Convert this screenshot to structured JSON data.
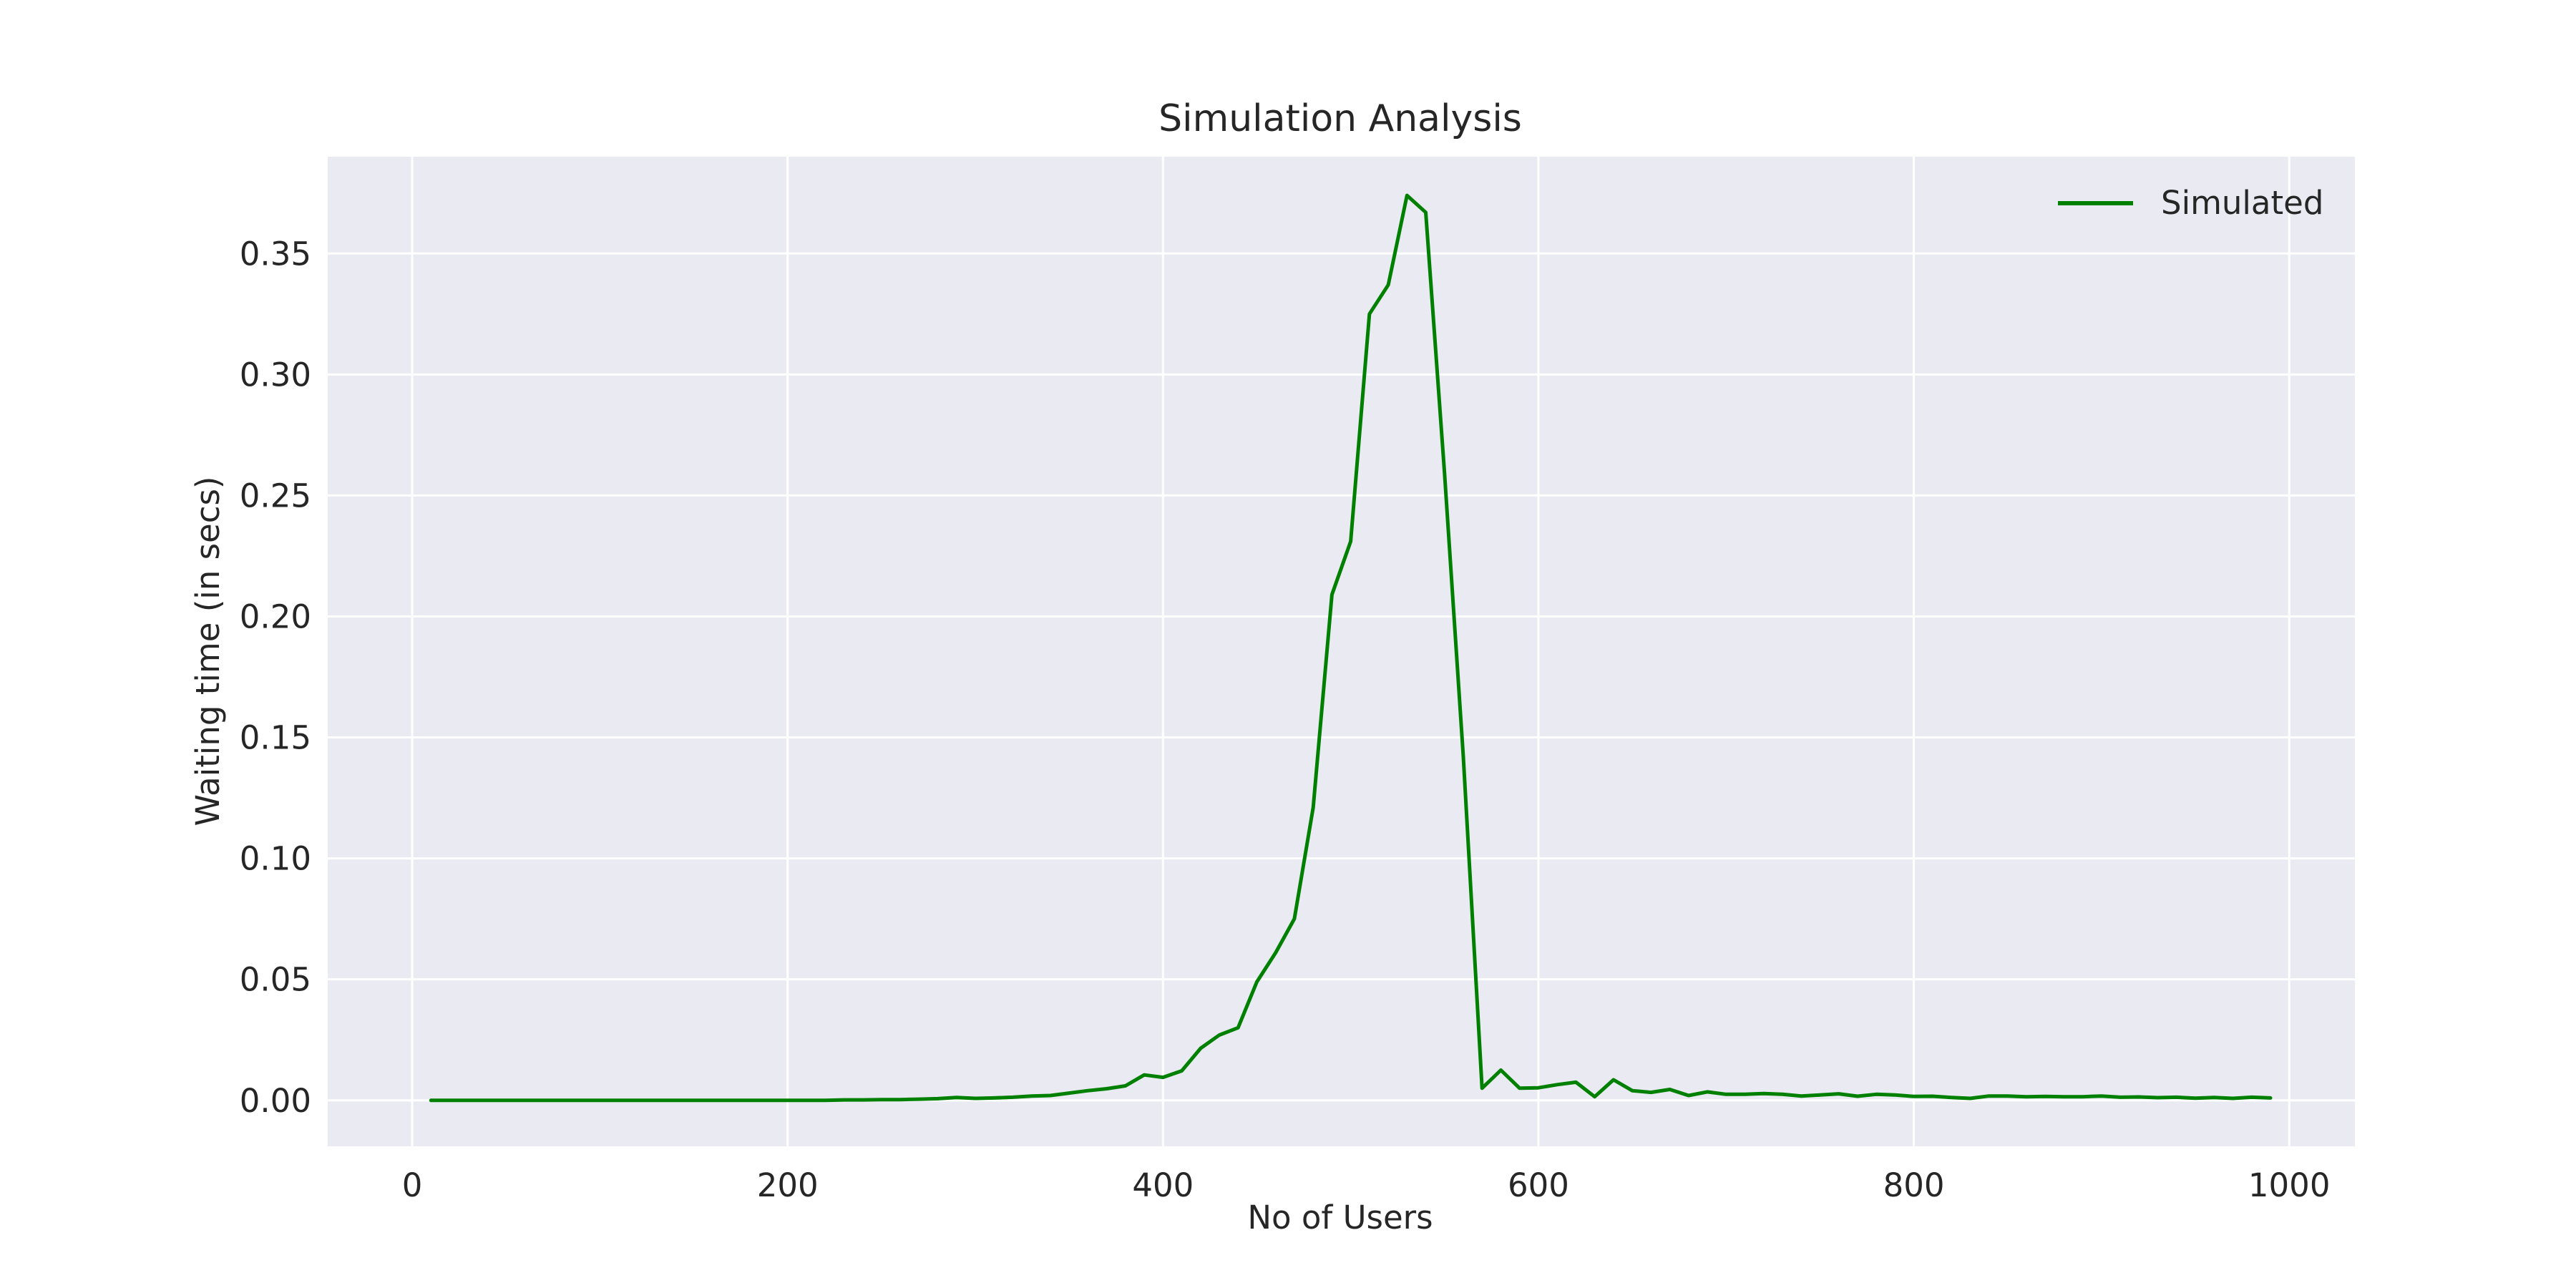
{
  "chart_data": {
    "type": "line",
    "title": "Simulation Analysis",
    "xlabel": "No of Users",
    "ylabel": "Waiting time (in secs)",
    "xlim": [
      -45,
      1035
    ],
    "ylim": [
      -0.019,
      0.39
    ],
    "xticks": [
      0,
      200,
      400,
      600,
      800,
      1000
    ],
    "xtick_labels": [
      "0",
      "200",
      "400",
      "600",
      "800",
      "1000"
    ],
    "yticks": [
      0.0,
      0.05,
      0.1,
      0.15,
      0.2,
      0.25,
      0.3,
      0.35
    ],
    "ytick_labels": [
      "0.00",
      "0.05",
      "0.10",
      "0.15",
      "0.20",
      "0.25",
      "0.30",
      "0.35"
    ],
    "grid": true,
    "legend_position": "top-right",
    "colors": {
      "background": "#eaeaf2",
      "grid": "#ffffff",
      "series": "#008000"
    },
    "series": [
      {
        "name": "Simulated",
        "color": "#008000",
        "x": [
          10,
          20,
          30,
          40,
          50,
          60,
          70,
          80,
          90,
          100,
          110,
          120,
          130,
          140,
          150,
          160,
          170,
          180,
          190,
          200,
          210,
          220,
          230,
          240,
          250,
          260,
          270,
          280,
          290,
          300,
          310,
          320,
          330,
          340,
          350,
          360,
          370,
          380,
          390,
          400,
          410,
          420,
          430,
          440,
          450,
          460,
          470,
          480,
          490,
          500,
          510,
          520,
          530,
          540,
          550,
          560,
          570,
          580,
          590,
          600,
          610,
          620,
          630,
          640,
          650,
          660,
          670,
          680,
          690,
          700,
          710,
          720,
          730,
          740,
          750,
          760,
          770,
          780,
          790,
          800,
          810,
          820,
          830,
          840,
          850,
          860,
          870,
          880,
          890,
          900,
          910,
          920,
          930,
          940,
          950,
          960,
          970,
          980,
          990
        ],
        "y": [
          0,
          0,
          0,
          0,
          0,
          0,
          0,
          0,
          0,
          0,
          0,
          0,
          0,
          0,
          0,
          0,
          0,
          0,
          0,
          0,
          0,
          0,
          0.0002,
          0.0002,
          0.0003,
          0.0003,
          0.0005,
          0.0007,
          0.0012,
          0.0008,
          0.001,
          0.0013,
          0.0018,
          0.002,
          0.003,
          0.004,
          0.0048,
          0.006,
          0.0105,
          0.0095,
          0.0122,
          0.0215,
          0.027,
          0.03,
          0.049,
          0.061,
          0.075,
          0.121,
          0.209,
          0.231,
          0.325,
          0.337,
          0.374,
          0.367,
          0.259,
          0.142,
          0.005,
          0.0125,
          0.005,
          0.0052,
          0.0065,
          0.0075,
          0.0015,
          0.0085,
          0.004,
          0.0033,
          0.0045,
          0.002,
          0.0035,
          0.0025,
          0.0025,
          0.0028,
          0.0025,
          0.0018,
          0.0022,
          0.0027,
          0.0017,
          0.0025,
          0.0022,
          0.0016,
          0.0017,
          0.0012,
          0.0008,
          0.0018,
          0.0018,
          0.0015,
          0.0016,
          0.0015,
          0.0015,
          0.0018,
          0.0013,
          0.0014,
          0.0011,
          0.0013,
          0.0009,
          0.0012,
          0.0008,
          0.0013,
          0.001
        ]
      }
    ]
  }
}
